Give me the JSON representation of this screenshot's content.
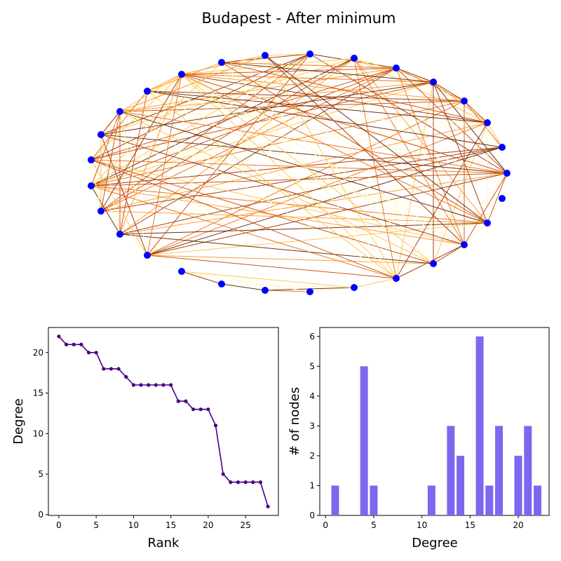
{
  "figure": {
    "title": "Budapest - After minimum"
  },
  "chart_data": [
    {
      "type": "network",
      "title": "Budapest - After minimum",
      "node_color": "#0000ff",
      "node_count": 29,
      "edge_colormap": [
        "#fff7bc",
        "#fec44f",
        "#fe9929",
        "#ec7014",
        "#cc4c02",
        "#993404",
        "#662506"
      ]
    },
    {
      "type": "line",
      "title": "",
      "xlabel": "Rank",
      "ylabel": "Degree",
      "color": "#4b0082",
      "x": [
        0,
        1,
        2,
        3,
        4,
        5,
        6,
        7,
        8,
        9,
        10,
        11,
        12,
        13,
        14,
        15,
        16,
        17,
        18,
        19,
        20,
        21,
        22,
        23,
        24,
        25,
        26,
        27,
        28
      ],
      "values": [
        22,
        21,
        21,
        21,
        20,
        20,
        18,
        18,
        18,
        17,
        16,
        16,
        16,
        16,
        16,
        16,
        14,
        14,
        13,
        13,
        13,
        11,
        5,
        4,
        4,
        4,
        4,
        4,
        1
      ],
      "xlim": [
        -1.4,
        29.4
      ],
      "ylim": [
        -0.1,
        23.1
      ],
      "xticks": [
        0,
        5,
        10,
        15,
        20,
        25
      ],
      "yticks": [
        0,
        5,
        10,
        15,
        20
      ]
    },
    {
      "type": "bar",
      "title": "",
      "xlabel": "Degree",
      "ylabel": "# of nodes",
      "color": "#7b68ee",
      "x": [
        1,
        4,
        5,
        11,
        13,
        14,
        16,
        17,
        18,
        20,
        21,
        22
      ],
      "values": [
        1,
        5,
        1,
        1,
        3,
        2,
        6,
        1,
        3,
        2,
        3,
        1
      ],
      "xlim": [
        -0.6,
        23.2
      ],
      "ylim": [
        0,
        6.3
      ],
      "xticks": [
        0,
        5,
        10,
        15,
        20
      ],
      "yticks": [
        0,
        1,
        2,
        3,
        4,
        5,
        6
      ]
    }
  ]
}
